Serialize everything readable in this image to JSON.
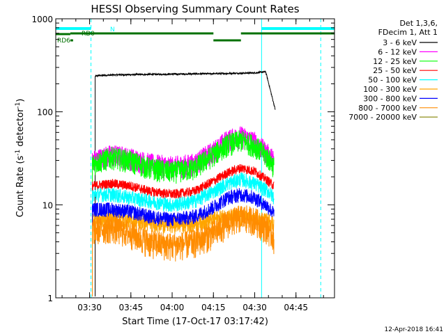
{
  "chart_data": {
    "type": "line",
    "title": "HESSI Observing Summary Count Rates",
    "xlabel": "Start Time (17-Oct-17 03:17:42)",
    "ylabel_main": "Count Rate (s",
    "ylabel_sup1": "-1",
    "ylabel_mid": " detector",
    "ylabel_sup2": "-1",
    "ylabel_end": ")",
    "y_scale": "log",
    "ylim": [
      1,
      1000
    ],
    "xlim": [
      "03:17:42",
      "04:59:00"
    ],
    "x_ticks": [
      "03:30",
      "03:45",
      "04:00",
      "04:15",
      "04:30",
      "04:45"
    ],
    "y_ticks": [
      "1",
      "10",
      "100",
      "1000"
    ],
    "legend_header": [
      "Det 1,3,6,",
      "FDecim 1, Att 1"
    ],
    "legend_placement": "right",
    "series": [
      {
        "name": "3 - 6 keV",
        "color": "#000000",
        "x": [
          "03:32:00",
          "03:33:00",
          "03:40:00",
          "03:50:00",
          "04:00:00",
          "04:10:00",
          "04:20:00",
          "04:30:00",
          "04:34:00",
          "04:37:30"
        ],
        "values": [
          240,
          245,
          250,
          252,
          254,
          256,
          258,
          262,
          270,
          105
        ]
      },
      {
        "name": "6 - 12 keV",
        "color": "#ff00ff",
        "x": [
          "03:31:00",
          "03:38:00",
          "03:45:00",
          "03:52:00",
          "04:00:00",
          "04:08:00",
          "04:15:00",
          "04:20:00",
          "04:25:00",
          "04:30:00",
          "04:35:00",
          "04:37:00"
        ],
        "values": [
          30,
          35,
          32,
          28,
          26,
          28,
          38,
          50,
          55,
          48,
          35,
          30
        ]
      },
      {
        "name": "12 - 25 keV",
        "color": "#00ff00",
        "x": [
          "03:31:00",
          "03:38:00",
          "03:45:00",
          "03:52:00",
          "04:00:00",
          "04:08:00",
          "04:15:00",
          "04:20:00",
          "04:25:00",
          "04:30:00",
          "04:35:00",
          "04:37:00"
        ],
        "values": [
          28,
          33,
          30,
          25,
          23,
          25,
          35,
          45,
          50,
          44,
          32,
          26
        ]
      },
      {
        "name": "25 - 50 keV",
        "color": "#ff0000",
        "x": [
          "03:31:00",
          "03:38:00",
          "03:45:00",
          "03:52:00",
          "04:00:00",
          "04:08:00",
          "04:15:00",
          "04:20:00",
          "04:25:00",
          "04:30:00",
          "04:35:00",
          "04:37:00"
        ],
        "values": [
          16,
          17,
          16,
          14,
          13,
          14,
          18,
          22,
          25,
          23,
          18,
          16
        ]
      },
      {
        "name": "50 - 100 keV",
        "color": "#00ffff",
        "x": [
          "03:31:00",
          "03:38:00",
          "03:45:00",
          "03:52:00",
          "04:00:00",
          "04:08:00",
          "04:15:00",
          "04:20:00",
          "04:25:00",
          "04:30:00",
          "04:35:00",
          "04:37:00"
        ],
        "values": [
          13,
          13,
          12,
          11,
          10,
          11,
          14,
          17,
          19,
          17,
          14,
          12
        ]
      },
      {
        "name": "100 - 300 keV",
        "color": "#ffa500",
        "x": [
          "03:31:00",
          "03:40:00",
          "03:50:00",
          "04:00:00",
          "04:10:00",
          "04:20:00",
          "04:30:00",
          "04:37:00"
        ],
        "values": [
          7,
          7,
          6.5,
          6.2,
          6.5,
          7.5,
          7,
          6.5
        ]
      },
      {
        "name": "300 - 800 keV",
        "color": "#0000ff",
        "x": [
          "03:31:00",
          "03:38:00",
          "03:45:00",
          "03:52:00",
          "04:00:00",
          "04:08:00",
          "04:15:00",
          "04:20:00",
          "04:25:00",
          "04:30:00",
          "04:35:00",
          "04:37:00"
        ],
        "values": [
          9,
          9,
          8.5,
          7.5,
          7,
          7.5,
          9.5,
          12,
          13,
          12,
          9.5,
          8
        ]
      },
      {
        "name": "800 - 7000 keV",
        "color": "#ff8c00",
        "x": [
          "03:31:00",
          "03:38:00",
          "03:45:00",
          "03:52:00",
          "04:00:00",
          "04:08:00",
          "04:15:00",
          "04:20:00",
          "04:25:00",
          "04:30:00",
          "04:35:00",
          "04:37:00"
        ],
        "values": [
          5.5,
          5.8,
          5,
          4,
          3.7,
          4,
          5,
          6.5,
          7.5,
          7,
          5.5,
          4.5
        ]
      },
      {
        "name": "7000 - 20000 keV",
        "color": "#808000",
        "x": [],
        "values": []
      }
    ],
    "status_bars": [
      {
        "label": "N",
        "color": "#00ffff",
        "segments": [
          [
            "03:17:42",
            "03:30:30"
          ],
          [
            "04:32:30",
            "04:59:00"
          ]
        ]
      },
      {
        "label": "RD0",
        "color": "#007000",
        "segments": [
          [
            "03:17:42",
            "03:23:00"
          ],
          [
            "03:23:00",
            "04:15:00"
          ],
          [
            "04:25:00",
            "04:59:00"
          ]
        ]
      },
      {
        "label": "",
        "color": "#007000",
        "segments": [
          [
            "04:15:00",
            "04:25:00"
          ]
        ]
      },
      {
        "label": "RD6",
        "color": "#007000",
        "segments": [
          [
            "03:23:00",
            "03:24:00"
          ]
        ]
      }
    ],
    "vertical_lines": [
      {
        "x": "03:17:42",
        "color": "#00ffff",
        "style": "solid"
      },
      {
        "x": "03:30:30",
        "color": "#00ffff",
        "style": "dashed"
      },
      {
        "x": "04:32:30",
        "color": "#00ffff",
        "style": "solid"
      },
      {
        "x": "04:54:00",
        "color": "#00ffff",
        "style": "dashed"
      }
    ],
    "footer_timestamp": "12-Apr-2018 16:41"
  }
}
